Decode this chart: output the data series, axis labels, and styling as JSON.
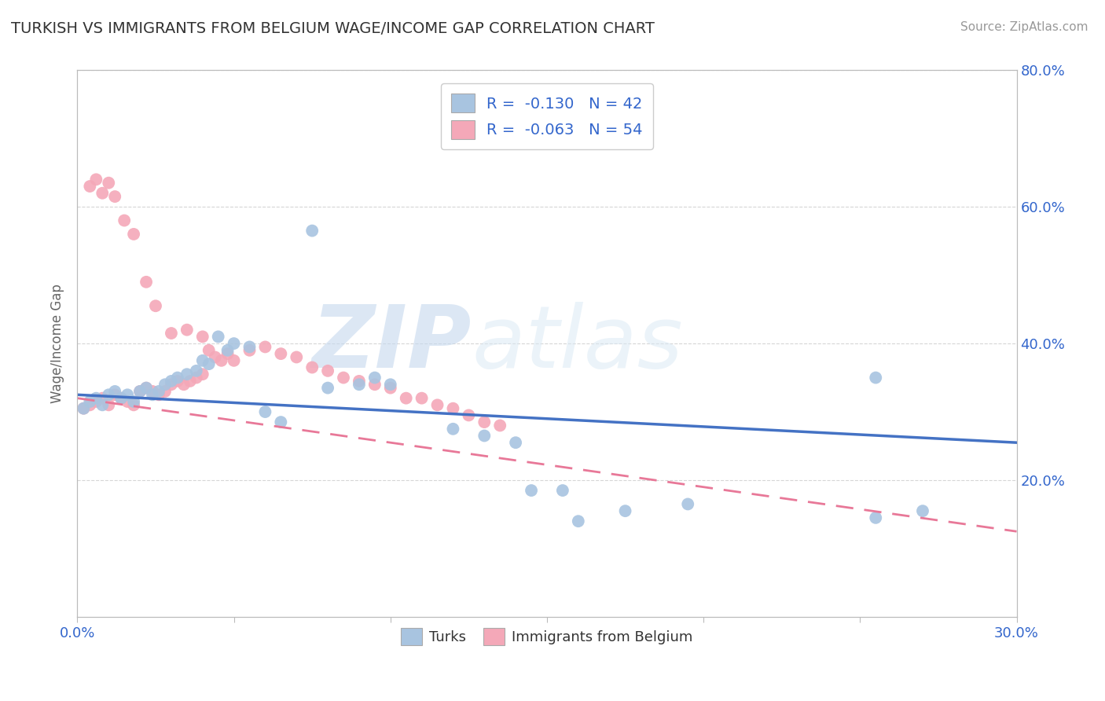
{
  "title": "TURKISH VS IMMIGRANTS FROM BELGIUM WAGE/INCOME GAP CORRELATION CHART",
  "source": "Source: ZipAtlas.com",
  "xlabel": "",
  "ylabel": "Wage/Income Gap",
  "xlim": [
    0.0,
    0.3
  ],
  "ylim": [
    0.0,
    0.8
  ],
  "xticks": [
    0.0,
    0.05,
    0.1,
    0.15,
    0.2,
    0.25,
    0.3
  ],
  "xticklabels": [
    "0.0%",
    "",
    "",
    "",
    "",
    "",
    "30.0%"
  ],
  "yticks_right": [
    0.2,
    0.4,
    0.6,
    0.8
  ],
  "yticks_right_labels": [
    "20.0%",
    "40.0%",
    "60.0%",
    "80.0%"
  ],
  "legend_r1": "R =  -0.130   N = 42",
  "legend_r2": "R =  -0.063   N = 54",
  "legend_label1": "Turks",
  "legend_label2": "Immigrants from Belgium",
  "color_turks": "#a8c4e0",
  "color_belgium": "#f4a8b8",
  "color_turks_line": "#4472c4",
  "color_belgium_line": "#e87898",
  "color_text": "#3366cc",
  "watermark_zip": "ZIP",
  "watermark_atlas": "atlas",
  "background_color": "#ffffff",
  "turks_x": [
    0.002,
    0.004,
    0.006,
    0.008,
    0.01,
    0.012,
    0.014,
    0.016,
    0.018,
    0.02,
    0.022,
    0.024,
    0.026,
    0.028,
    0.03,
    0.032,
    0.035,
    0.038,
    0.04,
    0.042,
    0.045,
    0.048,
    0.05,
    0.055,
    0.06,
    0.065,
    0.075,
    0.08,
    0.09,
    0.095,
    0.1,
    0.12,
    0.13,
    0.14,
    0.155,
    0.175,
    0.195,
    0.255,
    0.27,
    0.255,
    0.145,
    0.16
  ],
  "turks_y": [
    0.305,
    0.315,
    0.32,
    0.31,
    0.325,
    0.33,
    0.32,
    0.325,
    0.315,
    0.33,
    0.335,
    0.325,
    0.33,
    0.34,
    0.345,
    0.35,
    0.355,
    0.36,
    0.375,
    0.37,
    0.41,
    0.39,
    0.4,
    0.395,
    0.3,
    0.285,
    0.565,
    0.335,
    0.34,
    0.35,
    0.34,
    0.275,
    0.265,
    0.255,
    0.185,
    0.155,
    0.165,
    0.145,
    0.155,
    0.35,
    0.185,
    0.14
  ],
  "belgium_x": [
    0.002,
    0.004,
    0.006,
    0.008,
    0.01,
    0.012,
    0.014,
    0.016,
    0.018,
    0.02,
    0.022,
    0.024,
    0.026,
    0.028,
    0.03,
    0.032,
    0.034,
    0.036,
    0.038,
    0.04,
    0.042,
    0.044,
    0.046,
    0.048,
    0.05,
    0.055,
    0.06,
    0.065,
    0.07,
    0.075,
    0.08,
    0.085,
    0.09,
    0.095,
    0.1,
    0.105,
    0.11,
    0.115,
    0.12,
    0.125,
    0.13,
    0.135,
    0.015,
    0.012,
    0.01,
    0.008,
    0.018,
    0.006,
    0.004,
    0.022,
    0.025,
    0.03,
    0.035,
    0.04
  ],
  "belgium_y": [
    0.305,
    0.31,
    0.315,
    0.32,
    0.31,
    0.325,
    0.32,
    0.315,
    0.31,
    0.33,
    0.335,
    0.33,
    0.325,
    0.33,
    0.34,
    0.345,
    0.34,
    0.345,
    0.35,
    0.355,
    0.39,
    0.38,
    0.375,
    0.385,
    0.375,
    0.39,
    0.395,
    0.385,
    0.38,
    0.365,
    0.36,
    0.35,
    0.345,
    0.34,
    0.335,
    0.32,
    0.32,
    0.31,
    0.305,
    0.295,
    0.285,
    0.28,
    0.58,
    0.615,
    0.635,
    0.62,
    0.56,
    0.64,
    0.63,
    0.49,
    0.455,
    0.415,
    0.42,
    0.41
  ],
  "trend_turks_x0": 0.0,
  "trend_turks_y0": 0.325,
  "trend_turks_x1": 0.3,
  "trend_turks_y1": 0.255,
  "trend_belgium_x0": 0.0,
  "trend_belgium_y0": 0.32,
  "trend_belgium_x1": 0.3,
  "trend_belgium_y1": 0.125
}
